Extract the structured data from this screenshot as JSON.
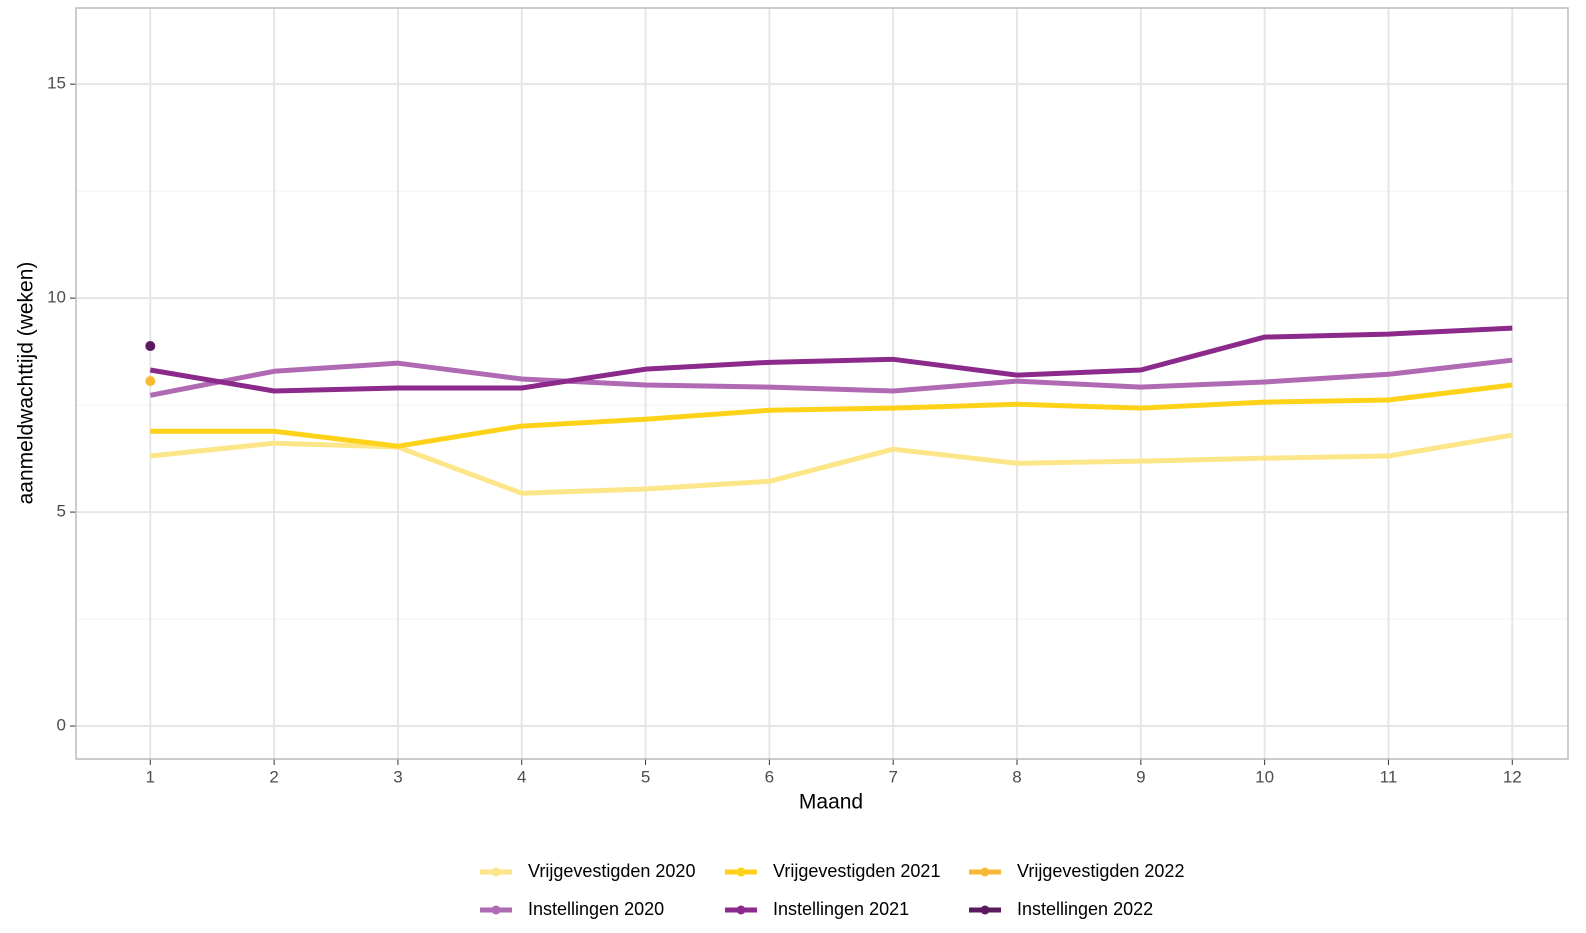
{
  "chart_data": {
    "type": "line",
    "x_label": "Maand",
    "y_label": "aanmeldwachttijd (weken)",
    "x": [
      1,
      2,
      3,
      4,
      5,
      6,
      7,
      8,
      9,
      10,
      11,
      12
    ],
    "xlim": [
      0.4,
      12.45
    ],
    "xticks": [
      1,
      2,
      3,
      4,
      5,
      6,
      7,
      8,
      9,
      10,
      11,
      12
    ],
    "ylim": [
      -0.77,
      16.78
    ],
    "yticks": [
      0,
      5,
      10,
      15
    ],
    "minor_yticks": [
      2.5,
      7.5,
      12.5
    ],
    "grid": true,
    "legend_position": "bottom",
    "series": [
      {
        "name": "Vrijgevestigden 2020",
        "color": "#fde68a",
        "values": [
          6.31,
          6.61,
          6.52,
          5.44,
          5.54,
          5.72,
          6.47,
          6.14,
          6.19,
          6.26,
          6.31,
          6.8
        ]
      },
      {
        "name": "Vrijgevestigden 2021",
        "color": "#ffd21a",
        "values": [
          6.89,
          6.89,
          6.54,
          7.01,
          7.17,
          7.38,
          7.43,
          7.52,
          7.43,
          7.57,
          7.62,
          7.97
        ]
      },
      {
        "name": "Vrijgevestigden 2022",
        "color": "#f9b934",
        "values": [
          8.06,
          null,
          null,
          null,
          null,
          null,
          null,
          null,
          null,
          null,
          null,
          null
        ]
      },
      {
        "name": "Instellingen 2020",
        "color": "#b06ab3",
        "values": [
          7.73,
          8.29,
          8.48,
          8.11,
          7.97,
          7.92,
          7.83,
          8.06,
          7.92,
          8.04,
          8.22,
          8.55
        ]
      },
      {
        "name": "Instellingen 2021",
        "color": "#8b2a8b",
        "values": [
          8.32,
          7.83,
          7.9,
          7.9,
          8.34,
          8.5,
          8.57,
          8.2,
          8.32,
          9.09,
          9.16,
          9.3
        ]
      },
      {
        "name": "Instellingen 2022",
        "color": "#5c1a5e",
        "values": [
          8.88,
          null,
          null,
          null,
          null,
          null,
          null,
          null,
          null,
          null,
          null,
          null
        ]
      }
    ]
  }
}
